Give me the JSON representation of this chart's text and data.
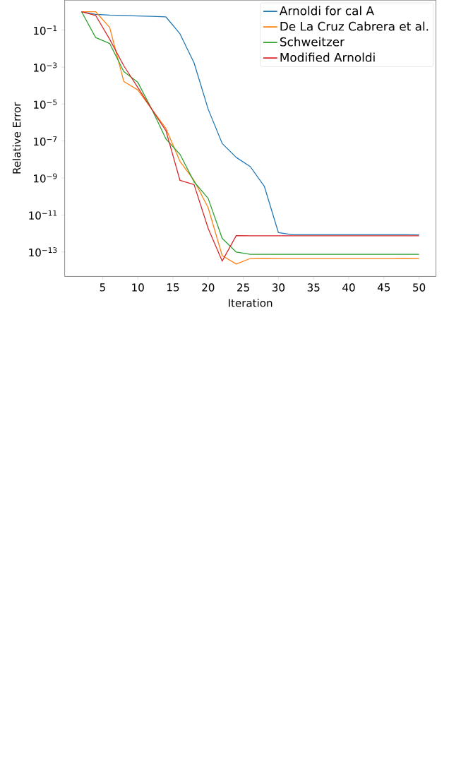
{
  "chart_data": {
    "type": "line",
    "xlabel": "Iteration",
    "ylabel": "Relative Error",
    "log": "y",
    "legend": "top right",
    "marker": "none",
    "grid": false,
    "x": [
      2,
      4,
      6,
      8,
      10,
      12,
      14,
      16,
      18,
      20,
      22,
      24,
      26,
      28,
      30,
      32,
      34,
      36,
      38,
      40,
      42,
      44,
      46,
      48,
      50
    ],
    "xlim": [
      -0.4,
      52.4
    ],
    "xticks": [
      5,
      10,
      15,
      20,
      25,
      30,
      35,
      40,
      45,
      50
    ],
    "ylim": [
      4.7e-15,
      4.2
    ],
    "yticks": [
      {
        "value": 1e-13,
        "label": "10$^{−13}$"
      },
      {
        "value": 1e-11,
        "label": "10$^{−11}$"
      },
      {
        "value": 1e-09,
        "label": "10$^{−9}$"
      },
      {
        "value": 1e-07,
        "label": "10$^{−7}$"
      },
      {
        "value": 1e-05,
        "label": "10$^{−5}$"
      },
      {
        "value": 0.001,
        "label": "10$^{−3}$"
      },
      {
        "value": 0.1,
        "label": "10$^{−1}$"
      }
    ],
    "series": [
      {
        "name": "Arnoldi for cal A",
        "color": "#1f77b4",
        "values": [
          1.0,
          0.72,
          0.65,
          0.62,
          0.59,
          0.56,
          0.52,
          0.063,
          0.0017,
          5.4e-06,
          7.4e-08,
          1.3e-08,
          4.1e-09,
          3.5e-10,
          1.1e-12,
          8.5e-13,
          8.5e-13,
          8.5e-13,
          8.5e-13,
          8.5e-13,
          8.5e-13,
          8.5e-13,
          8.5e-13,
          8.5e-13,
          8.3e-13
        ]
      },
      {
        "name": "De La Cruz Cabrera et al.",
        "color": "#ff7f0e",
        "values": [
          1.0,
          1.0,
          0.14,
          0.00017,
          5.8e-05,
          5.2e-06,
          4.8e-07,
          7.9e-09,
          7.4e-10,
          2.5e-11,
          6.3e-14,
          2.2e-14,
          4.4e-14,
          4.5e-14,
          4.4e-14,
          4.4e-14,
          4.4e-14,
          4.4e-14,
          4.4e-14,
          4.4e-14,
          4.4e-14,
          4.4e-14,
          4.4e-14,
          4.5e-14,
          4.4e-14
        ]
      },
      {
        "name": "Schweitzer",
        "color": "#2ca02c",
        "values": [
          1.0,
          0.04,
          0.019,
          0.00058,
          0.00015,
          5.2e-06,
          1.3e-07,
          1.9e-08,
          6.2e-10,
          7.9e-11,
          5.4e-13,
          9.8e-14,
          7.4e-14,
          7.4e-14,
          7.4e-14,
          7.4e-14,
          7.4e-14,
          7.4e-14,
          7.4e-14,
          7.4e-14,
          7.4e-14,
          7.4e-14,
          7.4e-14,
          7.4e-14,
          7.4e-14
        ]
      },
      {
        "name": "Modified Arnoldi",
        "color": "#d62728",
        "values": [
          1.0,
          0.63,
          0.032,
          0.0012,
          7.9e-05,
          5.2e-06,
          3.6e-07,
          7.4e-10,
          4.4e-10,
          1.9e-12,
          3.2e-14,
          7.6e-13,
          7.4e-13,
          7.4e-13,
          7.4e-13,
          7.4e-13,
          7.4e-13,
          7.4e-13,
          7.4e-13,
          7.4e-13,
          7.4e-13,
          7.4e-13,
          7.4e-13,
          7.4e-13,
          7.4e-13
        ]
      }
    ]
  }
}
